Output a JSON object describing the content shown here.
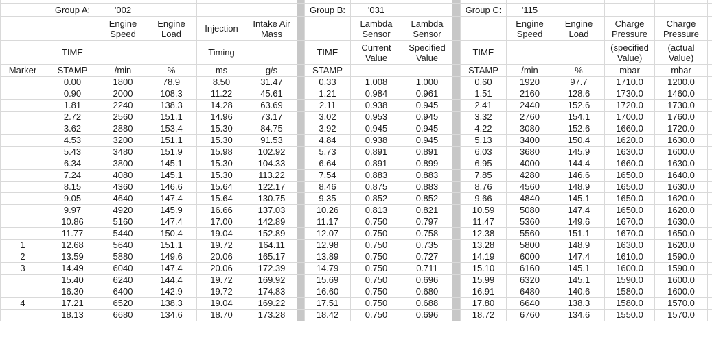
{
  "colors": {
    "grid_line": "#d9d9d9",
    "separator_fill": "#c7c7c7",
    "text": "#1d1d1d",
    "background": "#ffffff"
  },
  "table": {
    "marker_header": "Marker",
    "groups": [
      {
        "name": "Group A:",
        "id": "'002",
        "columns": [
          {
            "title": "",
            "subtitle": "TIME",
            "unit": "STAMP"
          },
          {
            "title": "Engine\nSpeed",
            "subtitle": "",
            "unit": "/min"
          },
          {
            "title": "Engine Load",
            "subtitle": "",
            "unit": "%"
          },
          {
            "title": "Injection",
            "subtitle": "Timing",
            "unit": "ms"
          },
          {
            "title": "Intake Air\nMass",
            "subtitle": "",
            "unit": "g/s"
          }
        ]
      },
      {
        "name": "Group B:",
        "id": "'031",
        "columns": [
          {
            "title": "",
            "subtitle": "TIME",
            "unit": "STAMP"
          },
          {
            "title": "Lambda\nSensor",
            "subtitle": "Current\nValue",
            "unit": ""
          },
          {
            "title": "Lambda\nSensor",
            "subtitle": "Specified\nValue",
            "unit": ""
          }
        ]
      },
      {
        "name": "Group C:",
        "id": "'115",
        "columns": [
          {
            "title": "",
            "subtitle": "TIME",
            "unit": "STAMP"
          },
          {
            "title": "Engine\nSpeed",
            "subtitle": "",
            "unit": "/min"
          },
          {
            "title": "Engine Load",
            "subtitle": "",
            "unit": "%"
          },
          {
            "title": "Charge\nPressure",
            "subtitle": "(specified\nValue)",
            "unit": "mbar"
          },
          {
            "title": "Charge\nPressure",
            "subtitle": "(actual\nValue)",
            "unit": "mbar"
          }
        ]
      }
    ],
    "rows": [
      {
        "marker": "",
        "a": [
          "0.00",
          "1800",
          "78.9",
          "8.50",
          "31.47"
        ],
        "b": [
          "0.33",
          "1.008",
          "1.000"
        ],
        "c": [
          "0.60",
          "1920",
          "97.7",
          "1710.0",
          "1200.0"
        ]
      },
      {
        "marker": "",
        "a": [
          "0.90",
          "2000",
          "108.3",
          "11.22",
          "45.61"
        ],
        "b": [
          "1.21",
          "0.984",
          "0.961"
        ],
        "c": [
          "1.51",
          "2160",
          "128.6",
          "1730.0",
          "1460.0"
        ]
      },
      {
        "marker": "",
        "a": [
          "1.81",
          "2240",
          "138.3",
          "14.28",
          "63.69"
        ],
        "b": [
          "2.11",
          "0.938",
          "0.945"
        ],
        "c": [
          "2.41",
          "2440",
          "152.6",
          "1720.0",
          "1730.0"
        ]
      },
      {
        "marker": "",
        "a": [
          "2.72",
          "2560",
          "151.1",
          "14.96",
          "73.17"
        ],
        "b": [
          "3.02",
          "0.953",
          "0.945"
        ],
        "c": [
          "3.32",
          "2760",
          "154.1",
          "1700.0",
          "1760.0"
        ]
      },
      {
        "marker": "",
        "a": [
          "3.62",
          "2880",
          "153.4",
          "15.30",
          "84.75"
        ],
        "b": [
          "3.92",
          "0.945",
          "0.945"
        ],
        "c": [
          "4.22",
          "3080",
          "152.6",
          "1660.0",
          "1720.0"
        ]
      },
      {
        "marker": "",
        "a": [
          "4.53",
          "3200",
          "151.1",
          "15.30",
          "91.53"
        ],
        "b": [
          "4.84",
          "0.938",
          "0.945"
        ],
        "c": [
          "5.13",
          "3400",
          "150.4",
          "1620.0",
          "1630.0"
        ]
      },
      {
        "marker": "",
        "a": [
          "5.43",
          "3480",
          "151.9",
          "15.98",
          "102.92"
        ],
        "b": [
          "5.73",
          "0.891",
          "0.891"
        ],
        "c": [
          "6.03",
          "3680",
          "145.9",
          "1630.0",
          "1600.0"
        ]
      },
      {
        "marker": "",
        "a": [
          "6.34",
          "3800",
          "145.1",
          "15.30",
          "104.33"
        ],
        "b": [
          "6.64",
          "0.891",
          "0.899"
        ],
        "c": [
          "6.95",
          "4000",
          "144.4",
          "1660.0",
          "1630.0"
        ]
      },
      {
        "marker": "",
        "a": [
          "7.24",
          "4080",
          "145.1",
          "15.30",
          "113.22"
        ],
        "b": [
          "7.54",
          "0.883",
          "0.883"
        ],
        "c": [
          "7.85",
          "4280",
          "146.6",
          "1650.0",
          "1640.0"
        ]
      },
      {
        "marker": "",
        "a": [
          "8.15",
          "4360",
          "146.6",
          "15.64",
          "122.17"
        ],
        "b": [
          "8.46",
          "0.875",
          "0.883"
        ],
        "c": [
          "8.76",
          "4560",
          "148.9",
          "1650.0",
          "1630.0"
        ]
      },
      {
        "marker": "",
        "a": [
          "9.05",
          "4640",
          "147.4",
          "15.64",
          "130.75"
        ],
        "b": [
          "9.35",
          "0.852",
          "0.852"
        ],
        "c": [
          "9.66",
          "4840",
          "145.1",
          "1650.0",
          "1620.0"
        ]
      },
      {
        "marker": "",
        "a": [
          "9.97",
          "4920",
          "145.9",
          "16.66",
          "137.03"
        ],
        "b": [
          "10.26",
          "0.813",
          "0.821"
        ],
        "c": [
          "10.59",
          "5080",
          "147.4",
          "1650.0",
          "1620.0"
        ]
      },
      {
        "marker": "",
        "a": [
          "10.86",
          "5160",
          "147.4",
          "17.00",
          "142.89"
        ],
        "b": [
          "11.17",
          "0.750",
          "0.797"
        ],
        "c": [
          "11.47",
          "5360",
          "149.6",
          "1670.0",
          "1630.0"
        ]
      },
      {
        "marker": "",
        "a": [
          "11.77",
          "5440",
          "150.4",
          "19.04",
          "152.89"
        ],
        "b": [
          "12.07",
          "0.750",
          "0.758"
        ],
        "c": [
          "12.38",
          "5560",
          "151.1",
          "1670.0",
          "1650.0"
        ]
      },
      {
        "marker": "1",
        "a": [
          "12.68",
          "5640",
          "151.1",
          "19.72",
          "164.11"
        ],
        "b": [
          "12.98",
          "0.750",
          "0.735"
        ],
        "c": [
          "13.28",
          "5800",
          "148.9",
          "1630.0",
          "1620.0"
        ]
      },
      {
        "marker": "2",
        "a": [
          "13.59",
          "5880",
          "149.6",
          "20.06",
          "165.17"
        ],
        "b": [
          "13.89",
          "0.750",
          "0.727"
        ],
        "c": [
          "14.19",
          "6000",
          "147.4",
          "1610.0",
          "1590.0"
        ]
      },
      {
        "marker": "3",
        "a": [
          "14.49",
          "6040",
          "147.4",
          "20.06",
          "172.39"
        ],
        "b": [
          "14.79",
          "0.750",
          "0.711"
        ],
        "c": [
          "15.10",
          "6160",
          "145.1",
          "1600.0",
          "1590.0"
        ]
      },
      {
        "marker": "",
        "a": [
          "15.40",
          "6240",
          "144.4",
          "19.72",
          "169.92"
        ],
        "b": [
          "15.69",
          "0.750",
          "0.696"
        ],
        "c": [
          "15.99",
          "6320",
          "145.1",
          "1590.0",
          "1600.0"
        ]
      },
      {
        "marker": "",
        "a": [
          "16.30",
          "6400",
          "142.9",
          "19.72",
          "174.83"
        ],
        "b": [
          "16.60",
          "0.750",
          "0.680"
        ],
        "c": [
          "16.91",
          "6480",
          "140.6",
          "1580.0",
          "1600.0"
        ]
      },
      {
        "marker": "4",
        "a": [
          "17.21",
          "6520",
          "138.3",
          "19.04",
          "169.22"
        ],
        "b": [
          "17.51",
          "0.750",
          "0.688"
        ],
        "c": [
          "17.80",
          "6640",
          "138.3",
          "1580.0",
          "1570.0"
        ]
      },
      {
        "marker": "",
        "a": [
          "18.13",
          "6680",
          "134.6",
          "18.70",
          "173.28"
        ],
        "b": [
          "18.42",
          "0.750",
          "0.696"
        ],
        "c": [
          "18.72",
          "6760",
          "134.6",
          "1550.0",
          "1570.0"
        ]
      }
    ]
  }
}
